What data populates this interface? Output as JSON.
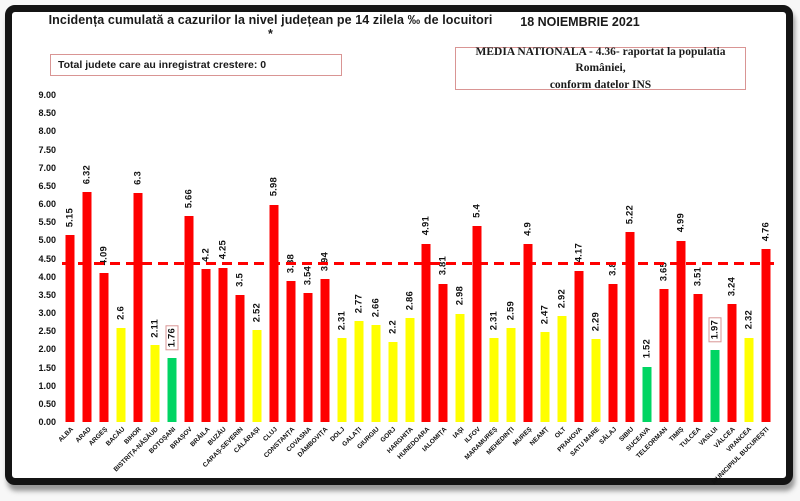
{
  "header": {
    "title": "Incidența cumulată a cazurilor la nivel județean pe 14 zilela ‰ de locuitori *",
    "date": "18 NOIEMBRIE 2021",
    "left_box": "Total judete care au inregistrat crestere: 0",
    "right_box_line1": "MEDIA NATIONALA  - 4.36-  raportat la populatia României,",
    "right_box_line2": "conform datelor INS"
  },
  "colors": {
    "red": "#fe0000",
    "yellow": "#ffff00",
    "green": "#00d563",
    "avg_line": "#fe0000",
    "box_border": "#d99594",
    "frame": "#141414"
  },
  "chart_data": {
    "type": "bar",
    "title": "Incidența cumulată a cazurilor la nivel județean pe 14 zilela ‰ de locuitori *",
    "xlabel": "",
    "ylabel": "",
    "ylim": [
      0,
      9
    ],
    "ytick_step": 0.5,
    "grid": false,
    "legend": false,
    "average_line": 4.36,
    "categories": [
      "ALBA",
      "ARAD",
      "ARGEȘ",
      "BACĂU",
      "BIHOR",
      "BISTRIȚA-NĂSĂUD",
      "BOTOȘANI",
      "BRAȘOV",
      "BRĂILA",
      "BUZĂU",
      "CARAȘ-SEVERIN",
      "CĂLĂRAȘI",
      "CLUJ",
      "CONSTANȚA",
      "COVASNA",
      "DÂMBOVIȚA",
      "DOLJ",
      "GALAȚI",
      "GIURGIU",
      "GORJ",
      "HARGHITA",
      "HUNEDOARA",
      "IALOMIȚA",
      "IAȘI",
      "ILFOV",
      "MARAMUREȘ",
      "MEHEDINȚI",
      "MUREȘ",
      "NEAMȚ",
      "OLT",
      "PRAHOVA",
      "SATU MARE",
      "SĂLAJ",
      "SIBIU",
      "SUCEAVA",
      "TELEORMAN",
      "TIMIȘ",
      "TULCEA",
      "VASLUI",
      "VÂLCEA",
      "VRANCEA",
      "MUNICIPIUL BUCUREȘTI"
    ],
    "values": [
      5.15,
      6.32,
      4.09,
      2.6,
      6.3,
      2.11,
      1.76,
      5.66,
      4.2,
      4.25,
      3.5,
      2.52,
      5.98,
      3.88,
      3.54,
      3.94,
      2.31,
      2.77,
      2.66,
      2.2,
      2.86,
      4.91,
      3.81,
      2.98,
      5.4,
      2.31,
      2.59,
      4.9,
      2.47,
      2.92,
      4.17,
      2.29,
      3.8,
      5.22,
      1.52,
      3.65,
      4.99,
      3.51,
      1.97,
      3.24,
      2.32,
      4.76
    ],
    "bar_colors": [
      "red",
      "red",
      "red",
      "yellow",
      "red",
      "yellow",
      "green",
      "red",
      "red",
      "red",
      "red",
      "yellow",
      "red",
      "red",
      "red",
      "red",
      "yellow",
      "yellow",
      "yellow",
      "yellow",
      "yellow",
      "red",
      "red",
      "yellow",
      "red",
      "yellow",
      "yellow",
      "red",
      "yellow",
      "yellow",
      "red",
      "yellow",
      "red",
      "red",
      "green",
      "red",
      "red",
      "red",
      "green",
      "red",
      "yellow",
      "red"
    ],
    "boxed_label_indices": [
      6,
      38
    ]
  }
}
